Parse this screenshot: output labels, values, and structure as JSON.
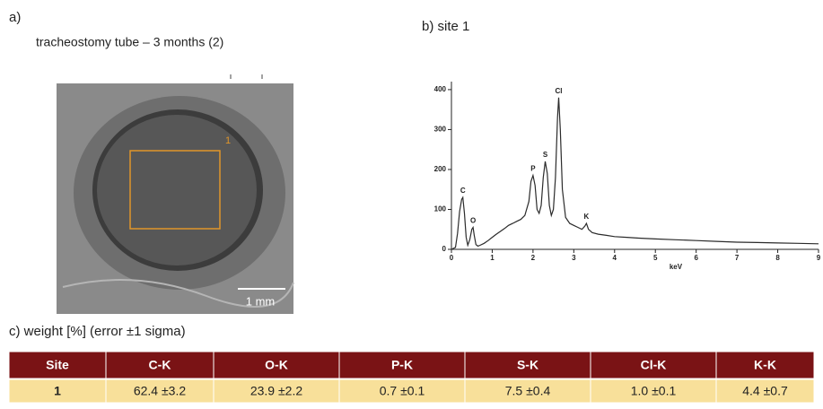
{
  "panel_a": {
    "label": "a)",
    "title": "tracheostomy tube – 3 months (2)",
    "site_marker": "1",
    "scale_bar": "1 mm"
  },
  "chart_data": {
    "type": "line",
    "title": "b) site 1",
    "x_label": "keV",
    "color": "#2b2b2b",
    "x": [
      0.0,
      0.1,
      0.15,
      0.2,
      0.25,
      0.28,
      0.32,
      0.36,
      0.4,
      0.45,
      0.5,
      0.53,
      0.56,
      0.6,
      0.65,
      0.7,
      0.8,
      0.9,
      1.0,
      1.1,
      1.2,
      1.3,
      1.4,
      1.5,
      1.6,
      1.7,
      1.8,
      1.9,
      1.95,
      2.0,
      2.05,
      2.1,
      2.15,
      2.2,
      2.25,
      2.3,
      2.35,
      2.4,
      2.45,
      2.5,
      2.55,
      2.6,
      2.63,
      2.67,
      2.72,
      2.8,
      2.9,
      3.0,
      3.1,
      3.2,
      3.27,
      3.31,
      3.36,
      3.45,
      3.6,
      3.8,
      4.0,
      4.3,
      4.6,
      5.0,
      5.5,
      6.0,
      6.5,
      7.0,
      7.5,
      8.0,
      8.5,
      9.0
    ],
    "values": [
      0,
      5,
      40,
      95,
      125,
      130,
      90,
      30,
      10,
      25,
      50,
      55,
      35,
      12,
      8,
      10,
      15,
      22,
      30,
      38,
      45,
      52,
      60,
      65,
      70,
      75,
      85,
      120,
      170,
      185,
      160,
      100,
      90,
      110,
      180,
      220,
      190,
      110,
      85,
      100,
      180,
      330,
      380,
      300,
      150,
      80,
      65,
      60,
      55,
      50,
      58,
      65,
      50,
      42,
      38,
      35,
      32,
      30,
      28,
      26,
      24,
      22,
      20,
      18,
      17,
      16,
      15,
      14
    ],
    "xlim": [
      0,
      9
    ],
    "xticks": [
      0,
      1,
      2,
      3,
      4,
      5,
      6,
      7,
      8,
      9
    ],
    "ylim": [
      0,
      420
    ],
    "yticks": [
      0,
      100,
      200,
      300,
      400
    ],
    "annotations": [
      {
        "text": "C",
        "x": 0.28,
        "y": 130
      },
      {
        "text": "O",
        "x": 0.53,
        "y": 55
      },
      {
        "text": "P",
        "x": 2.0,
        "y": 185
      },
      {
        "text": "S",
        "x": 2.3,
        "y": 220
      },
      {
        "text": "Cl",
        "x": 2.63,
        "y": 380
      },
      {
        "text": "K",
        "x": 3.31,
        "y": 65
      }
    ]
  },
  "table": {
    "caption": "c) weight [%] (error ±1 sigma)",
    "header": [
      "Site",
      "C-K",
      "O-K",
      "P-K",
      "S-K",
      "Cl-K",
      "K-K"
    ],
    "rows": [
      [
        "1",
        "62.4 ±3.2",
        "23.9 ±2.2",
        "0.7 ±0.1",
        "7.5 ±0.4",
        "1.0 ±0.1",
        "4.4 ±0.7"
      ]
    ]
  }
}
